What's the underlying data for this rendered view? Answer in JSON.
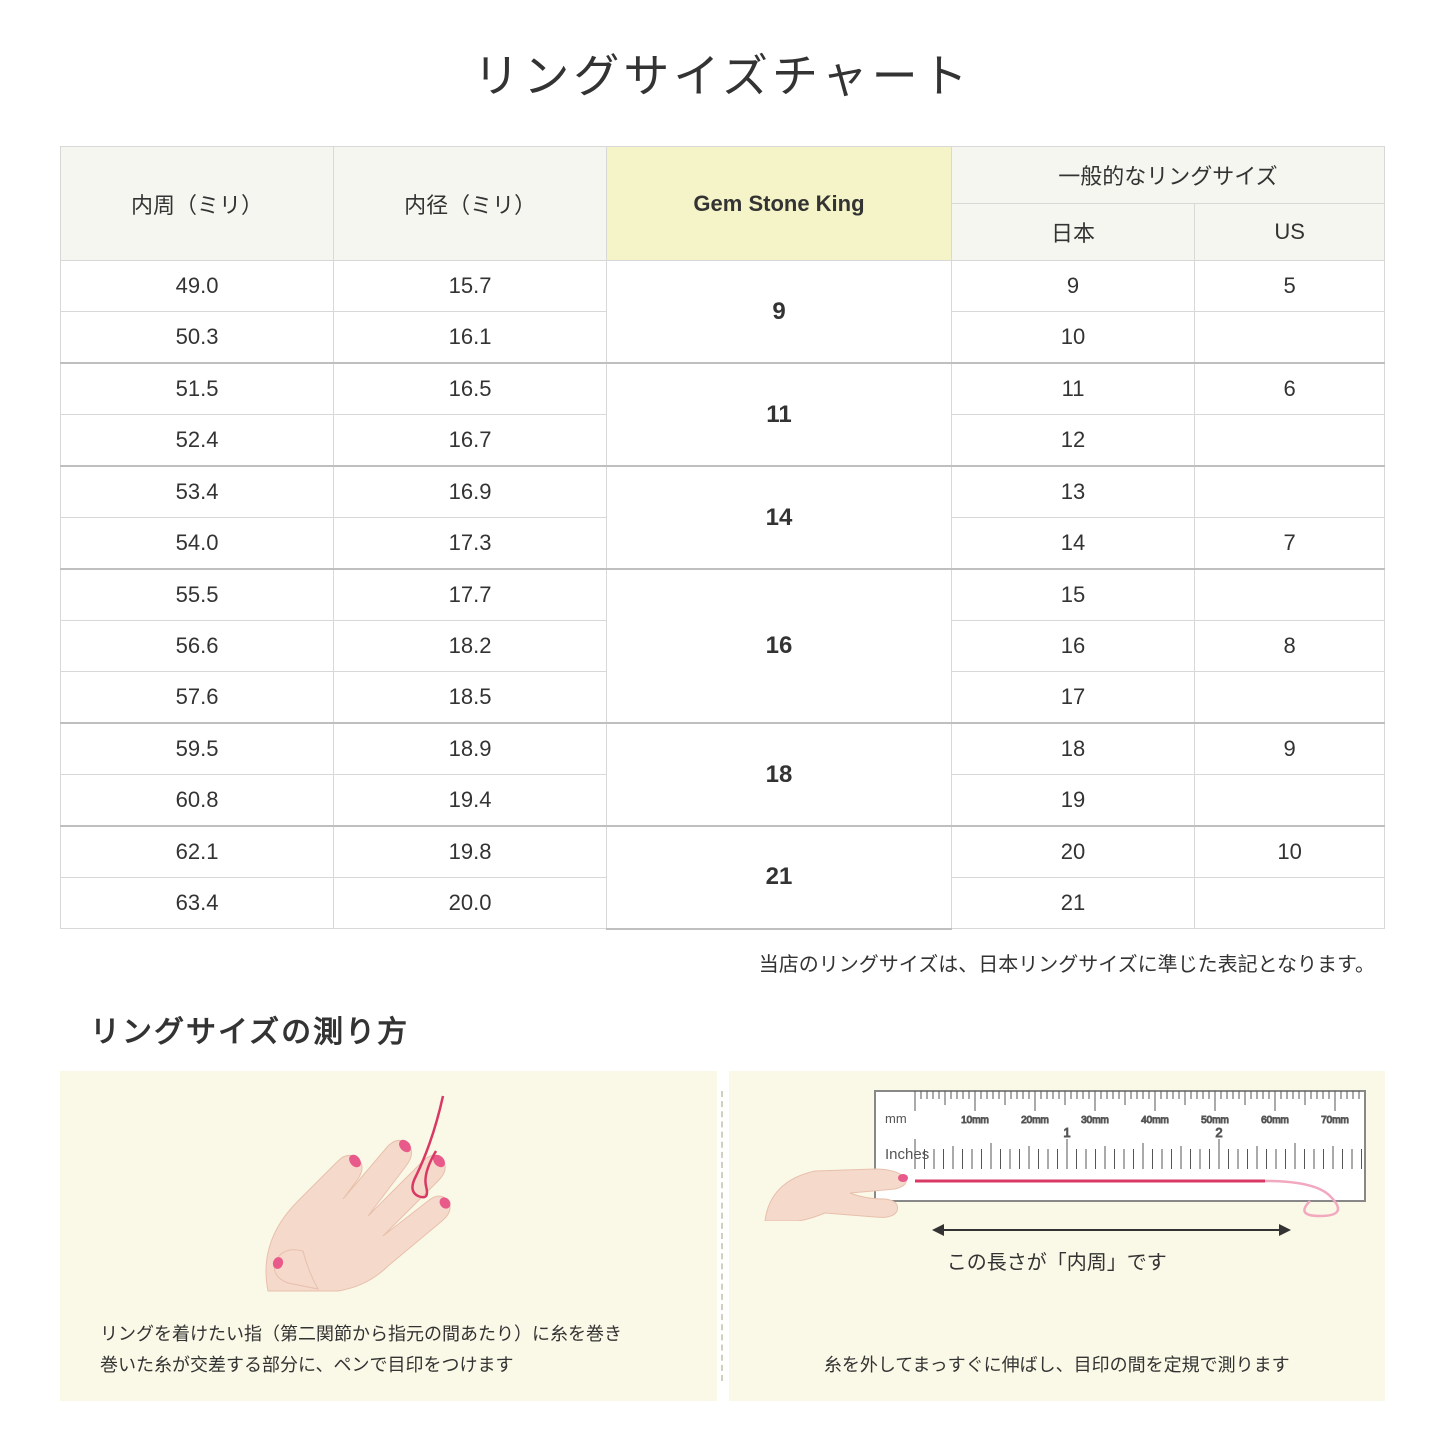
{
  "title": "リングサイズチャート",
  "headers": {
    "circumference": "内周（ミリ）",
    "diameter": "内径（ミリ）",
    "gsk": "Gem Stone King",
    "general": "一般的なリングサイズ",
    "japan": "日本",
    "us": "US"
  },
  "rows": [
    {
      "c": "49.0",
      "d": "15.7",
      "jp": "9",
      "us": "5"
    },
    {
      "c": "50.3",
      "d": "16.1",
      "jp": "10",
      "us": ""
    },
    {
      "c": "51.5",
      "d": "16.5",
      "jp": "11",
      "us": "6"
    },
    {
      "c": "52.4",
      "d": "16.7",
      "jp": "12",
      "us": ""
    },
    {
      "c": "53.4",
      "d": "16.9",
      "jp": "13",
      "us": ""
    },
    {
      "c": "54.0",
      "d": "17.3",
      "jp": "14",
      "us": "7"
    },
    {
      "c": "55.5",
      "d": "17.7",
      "jp": "15",
      "us": ""
    },
    {
      "c": "56.6",
      "d": "18.2",
      "jp": "16",
      "us": "8"
    },
    {
      "c": "57.6",
      "d": "18.5",
      "jp": "17",
      "us": ""
    },
    {
      "c": "59.5",
      "d": "18.9",
      "jp": "18",
      "us": "9"
    },
    {
      "c": "60.8",
      "d": "19.4",
      "jp": "19",
      "us": ""
    },
    {
      "c": "62.1",
      "d": "19.8",
      "jp": "20",
      "us": "10"
    },
    {
      "c": "63.4",
      "d": "20.0",
      "jp": "21",
      "us": ""
    }
  ],
  "gsk_groups": [
    {
      "label": "9",
      "span": 2
    },
    {
      "label": "11",
      "span": 2
    },
    {
      "label": "14",
      "span": 2
    },
    {
      "label": "16",
      "span": 3
    },
    {
      "label": "18",
      "span": 2
    },
    {
      "label": "21",
      "span": 2
    }
  ],
  "note": "当店のリングサイズは、日本リングサイズに準じた表記となります。",
  "subtitle": "リングサイズの測り方",
  "left_caption": "リングを着けたい指（第二関節から指元の間あたり）に糸を巻き\n巻いた糸が交差する部分に、ペンで目印をつけます",
  "right_label": "この長さが「内周」です",
  "right_caption": "糸を外してまっすぐに伸ばし、目印の間を定規で測ります",
  "ruler": {
    "mm_label": "mm",
    "inches_label": "Inches",
    "mm_ticks": [
      "10mm",
      "20mm",
      "30mm",
      "40mm",
      "50mm",
      "60mm",
      "70mm"
    ]
  },
  "colors": {
    "header_bg": "#f6f6f1",
    "highlight_bg": "#f5f3c8",
    "panel_bg": "#faf8e6",
    "skin": "#f5d9ca",
    "skin_dark": "#e8c0ad",
    "nail": "#e85a8a",
    "thread": "#d93865",
    "border": "#d8d8d8"
  }
}
